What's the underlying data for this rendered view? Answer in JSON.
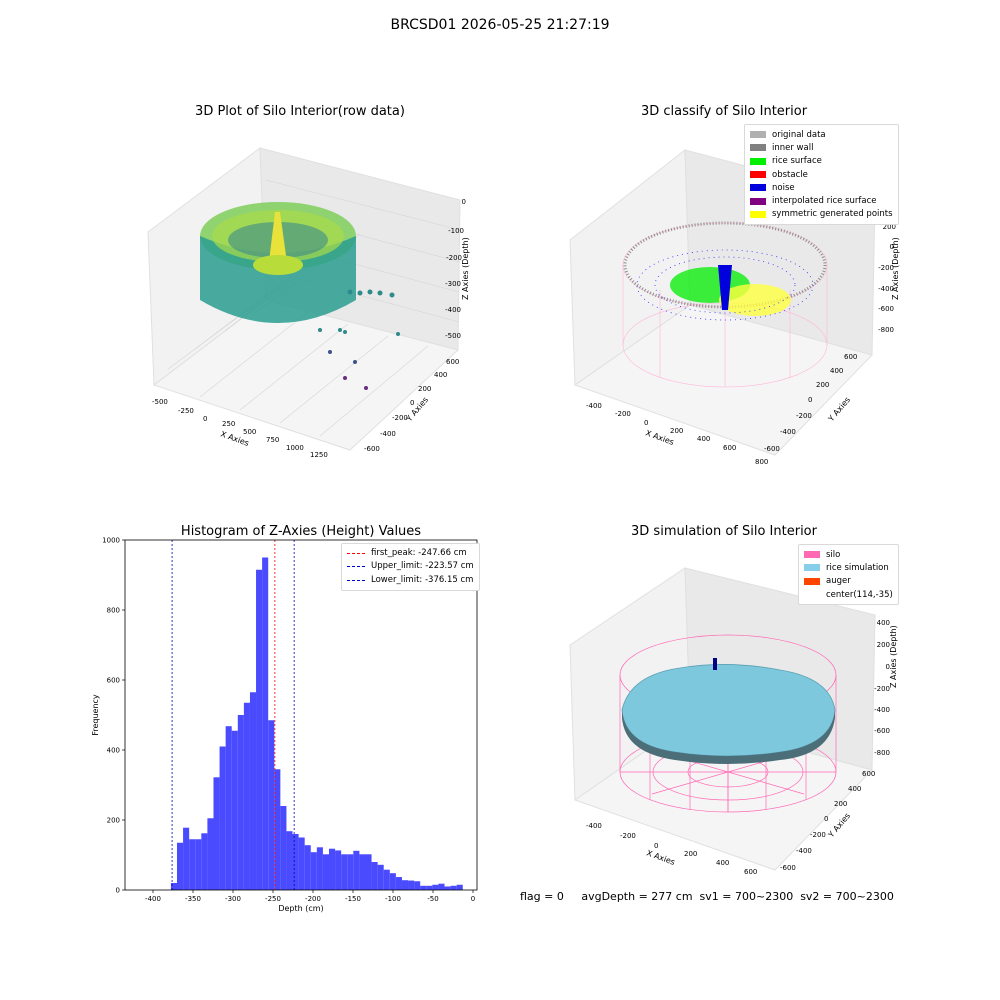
{
  "suptitle": "BRCSD01 2026-05-25 21:27:19",
  "panel1": {
    "title": "3D Plot of Silo Interior(row data)",
    "xlabel": "X Axies",
    "ylabel": "Y Axies",
    "zlabel": "Z Axies (Depth)",
    "xticks": [
      "-500",
      "-250",
      "0",
      "250",
      "500",
      "750",
      "1000",
      "1250"
    ],
    "yticks": [
      "600",
      "400",
      "200",
      "0",
      "-200",
      "-400",
      "-600"
    ],
    "zticks": [
      "0",
      "-100",
      "-200",
      "-300",
      "-400",
      "-500"
    ]
  },
  "panel2": {
    "title": "3D classify of Silo Interior",
    "xlabel": "X Axies",
    "ylabel": "Y Axies",
    "zlabel": "Z Axies (Depth)",
    "xticks": [
      "-400",
      "-200",
      "0",
      "200",
      "400",
      "600",
      "800"
    ],
    "yticks": [
      "600",
      "400",
      "200",
      "0",
      "-200",
      "-400",
      "-600"
    ],
    "zticks": [
      "200",
      "0",
      "-200",
      "-400",
      "-600",
      "-800"
    ],
    "legend": [
      {
        "label": "original data",
        "color": "#b0b0b0"
      },
      {
        "label": "inner wall",
        "color": "#808080"
      },
      {
        "label": "rice surface",
        "color": "#00ee00"
      },
      {
        "label": "obstacle",
        "color": "#ff0000"
      },
      {
        "label": "noise",
        "color": "#0000dd"
      },
      {
        "label": "interpolated rice surface",
        "color": "#800080"
      },
      {
        "label": "symmetric generated points",
        "color": "#ffff00"
      }
    ]
  },
  "panel3": {
    "title": "Histogram of Z-Axies (Height) Values",
    "legend": [
      {
        "label": "first_peak: -247.66 cm",
        "color": "#ff0000"
      },
      {
        "label": "Upper_limit: -223.57 cm",
        "color": "#0000cc"
      },
      {
        "label": "Lower_limit: -376.15 cm",
        "color": "#0000cc"
      }
    ]
  },
  "panel4": {
    "title": "3D simulation of Silo Interior",
    "xlabel": "X Axies",
    "ylabel": "Y Axies",
    "zlabel": "Z Axies (Depth)",
    "xticks": [
      "-400",
      "-200",
      "0",
      "200",
      "400",
      "600"
    ],
    "yticks": [
      "600",
      "400",
      "200",
      "0",
      "-200",
      "-400",
      "-600"
    ],
    "zticks": [
      "400",
      "200",
      "0",
      "-200",
      "-400",
      "-600",
      "-800"
    ],
    "legend": [
      {
        "label": "silo",
        "color": "#ff69b4"
      },
      {
        "label": "rice simulation",
        "color": "#87ceeb"
      },
      {
        "label": "auger",
        "color": "#ff4500"
      },
      {
        "label": "center(114,-35)",
        "color": ""
      }
    ]
  },
  "footer": "flag = 0     avgDepth = 277 cm  sv1 = 700~2300  sv2 = 700~2300",
  "chart_data": {
    "type": "bar",
    "title": "Histogram of Z-Axies (Height) Values",
    "xlabel": "Depth (cm)",
    "ylabel": "Frequency",
    "xlim": [
      -435,
      5
    ],
    "ylim": [
      0,
      1000
    ],
    "xticks": [
      -400,
      -350,
      -300,
      -250,
      -200,
      -150,
      -100,
      -50,
      0
    ],
    "yticks": [
      0,
      200,
      400,
      600,
      800,
      1000
    ],
    "bar_color": "#4a4aff",
    "bin_width": 7.6,
    "bin_left_edges": [
      -377.6,
      -370.0,
      -362.4,
      -354.8,
      -347.2,
      -339.6,
      -332.0,
      -324.4,
      -316.8,
      -309.2,
      -301.6,
      -294.0,
      -286.4,
      -278.8,
      -271.2,
      -263.6,
      -256.0,
      -248.4,
      -240.8,
      -233.2,
      -225.6,
      -218.0,
      -210.4,
      -202.8,
      -195.2,
      -187.6,
      -180.0,
      -172.4,
      -164.8,
      -157.2,
      -149.6,
      -142.0,
      -134.4,
      -126.8,
      -119.2,
      -111.6,
      -104.0,
      -96.4,
      -88.8,
      -81.2,
      -73.6,
      -66.0,
      -58.4,
      -50.8,
      -43.2,
      -35.6,
      -28.0,
      -20.4
    ],
    "values": [
      20,
      135,
      178,
      145,
      145,
      162,
      205,
      322,
      410,
      468,
      455,
      500,
      535,
      565,
      915,
      950,
      485,
      345,
      240,
      168,
      160,
      150,
      128,
      108,
      122,
      102,
      118,
      113,
      102,
      102,
      112,
      102,
      102,
      80,
      72,
      58,
      48,
      37,
      28,
      27,
      25,
      12,
      12,
      15,
      18,
      10,
      12,
      15
    ],
    "lines": [
      {
        "name": "first_peak",
        "x": -247.66,
        "color": "#ff0000"
      },
      {
        "name": "Upper_limit",
        "x": -223.57,
        "color": "#0000cc"
      },
      {
        "name": "Lower_limit",
        "x": -376.15,
        "color": "#0000cc"
      }
    ]
  }
}
